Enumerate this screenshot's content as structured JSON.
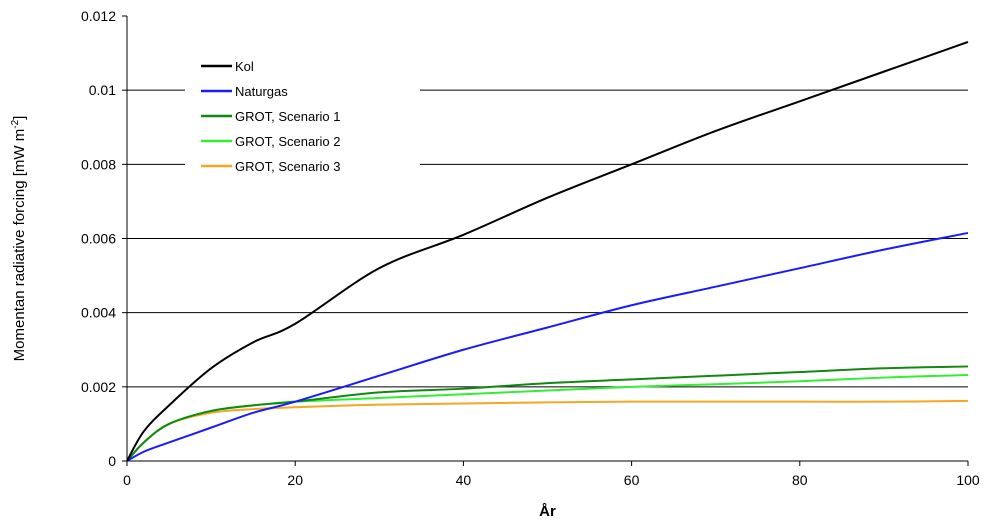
{
  "chart_data": {
    "type": "line",
    "title": "",
    "xlabel": "År",
    "ylabel": "Momentan radiative forcing [mW m",
    "ylabel_sup": "-2",
    "ylabel_end": "]",
    "xlim": [
      0,
      100
    ],
    "ylim": [
      0,
      0.012
    ],
    "xticks": [
      0,
      20,
      40,
      60,
      80,
      100
    ],
    "xtick_labels": [
      "0",
      "20",
      "40",
      "60",
      "80",
      "100"
    ],
    "yticks": [
      0,
      0.002,
      0.004,
      0.006,
      0.008,
      0.01,
      0.012
    ],
    "ytick_labels": [
      "0",
      "0.002",
      "0.004",
      "0.006",
      "0.008",
      "0.01",
      "0.012"
    ],
    "grid": "horizontal",
    "legend_position": "top-left",
    "x": [
      0,
      2,
      5,
      10,
      15,
      20,
      30,
      40,
      50,
      60,
      70,
      80,
      90,
      100
    ],
    "series": [
      {
        "name": "Kol",
        "color": "#000000",
        "values": [
          0,
          0.0008,
          0.0015,
          0.0025,
          0.0032,
          0.0037,
          0.0052,
          0.0061,
          0.0071,
          0.008,
          0.0089,
          0.0097,
          0.0105,
          0.0113
        ]
      },
      {
        "name": "Naturgas",
        "color": "#1a1aff",
        "values": [
          0,
          0.00025,
          0.0005,
          0.0009,
          0.0013,
          0.0016,
          0.0023,
          0.003,
          0.0036,
          0.0042,
          0.0047,
          0.0052,
          0.0057,
          0.00615
        ]
      },
      {
        "name": "GROT, Scenario 1",
        "color": "#118811",
        "values": [
          0,
          0.0005,
          0.001,
          0.00135,
          0.0015,
          0.0016,
          0.00185,
          0.00195,
          0.0021,
          0.0022,
          0.0023,
          0.0024,
          0.0025,
          0.00255
        ]
      },
      {
        "name": "GROT, Scenario 2",
        "color": "#33ee33",
        "values": [
          0,
          0.0005,
          0.001,
          0.00135,
          0.0015,
          0.0016,
          0.0017,
          0.0018,
          0.0019,
          0.002,
          0.00207,
          0.00215,
          0.00225,
          0.00232
        ]
      },
      {
        "name": "GROT, Scenario 3",
        "color": "#f5a623",
        "values": [
          0,
          0.0005,
          0.001,
          0.0013,
          0.0014,
          0.00145,
          0.00152,
          0.00155,
          0.00158,
          0.0016,
          0.0016,
          0.0016,
          0.0016,
          0.00162
        ]
      }
    ]
  }
}
